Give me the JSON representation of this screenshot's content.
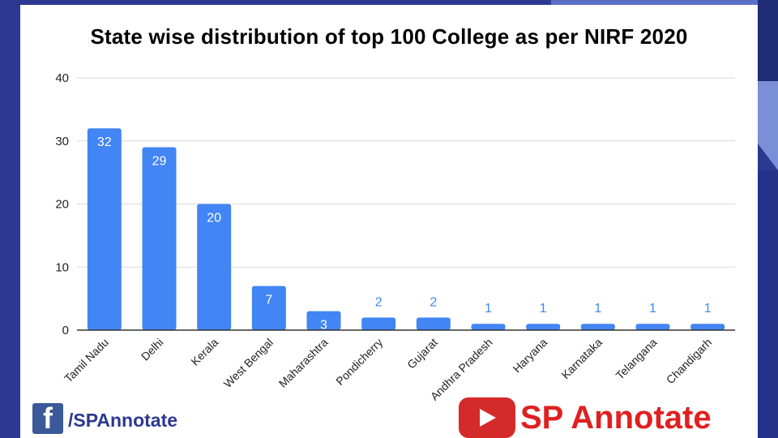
{
  "chart_data": {
    "type": "bar",
    "title": "State wise distribution of top 100 College as per NIRF 2020",
    "categories": [
      "Tamil Nadu",
      "Delhi",
      "Kerala",
      "West Bengal",
      "Maharashtra",
      "Pondicherry",
      "Gujarat",
      "Andhra Pradesh",
      "Haryana",
      "Karnataka",
      "Telangana",
      "Chandigarh"
    ],
    "values": [
      32,
      29,
      20,
      7,
      3,
      2,
      2,
      1,
      1,
      1,
      1,
      1
    ],
    "ylim": [
      0,
      40
    ],
    "yticks": [
      "0",
      "10",
      "20",
      "30",
      "40"
    ],
    "xlabel": "",
    "ylabel": "",
    "grid": true,
    "bar_color": "#4285f4",
    "label_inside_color": "#ffffff",
    "label_outside_color": "#4285f4"
  },
  "branding": {
    "facebook_icon": "f",
    "facebook_handle": "/SPAnnotate",
    "youtube_icon": "youtube-play-icon",
    "youtube_name": "SP Annotate"
  },
  "colors": {
    "background": "#2b3990",
    "facebook": "#3b5998",
    "youtube": "#d42a2a",
    "youtube_text": "#e02020"
  }
}
